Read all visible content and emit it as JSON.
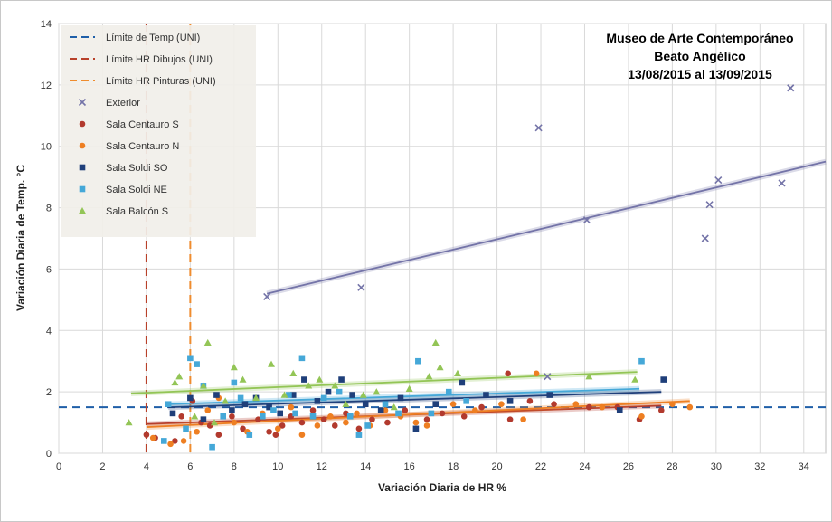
{
  "chart_data": {
    "type": "scatter",
    "title_lines": [
      "Museo de Arte Contemporáneo",
      "Beato Angélico",
      "13/08/2015 al 13/09/2015"
    ],
    "xlabel": "Variación Diaria de HR %",
    "ylabel": "Variación Diaria de Temp. °C",
    "xlim": [
      0,
      35
    ],
    "ylim": [
      0,
      14
    ],
    "xticks": [
      0,
      2,
      4,
      6,
      8,
      10,
      12,
      14,
      16,
      18,
      20,
      22,
      24,
      26,
      28,
      30,
      32,
      34
    ],
    "yticks": [
      0,
      2,
      4,
      6,
      8,
      10,
      12,
      14
    ],
    "grid": true,
    "legend_position": "top-left",
    "reference_lines": [
      {
        "name": "Límite de Temp (UNI)",
        "orientation": "horizontal",
        "value": 1.5,
        "color": "#1f5fa8"
      },
      {
        "name": "Límite HR Dibujos (UNI)",
        "orientation": "vertical",
        "value": 4,
        "color": "#b8412a"
      },
      {
        "name": "Límite HR Pinturas (UNI)",
        "orientation": "vertical",
        "value": 6,
        "color": "#ef8c2e"
      }
    ],
    "series": [
      {
        "name": "Exterior",
        "marker": "x",
        "color": "#7474a8",
        "points": [
          [
            9.5,
            5.1
          ],
          [
            13.8,
            5.4
          ],
          [
            21.9,
            10.6
          ],
          [
            22.3,
            2.5
          ],
          [
            24.1,
            7.6
          ],
          [
            29.5,
            7.0
          ],
          [
            29.7,
            8.1
          ],
          [
            30.1,
            8.9
          ],
          [
            33.0,
            8.8
          ],
          [
            33.4,
            11.9
          ]
        ],
        "trend": [
          [
            9.5,
            5.2
          ],
          [
            35,
            9.5
          ]
        ]
      },
      {
        "name": "Sala Centauro S",
        "marker": "circle",
        "color": "#b23a2e",
        "points": [
          [
            4.0,
            0.6
          ],
          [
            4.4,
            0.5
          ],
          [
            5.3,
            0.4
          ],
          [
            5.6,
            1.2
          ],
          [
            6.1,
            1.7
          ],
          [
            6.5,
            1.0
          ],
          [
            6.9,
            0.9
          ],
          [
            7.3,
            0.6
          ],
          [
            7.9,
            1.2
          ],
          [
            8.4,
            0.8
          ],
          [
            9.1,
            1.1
          ],
          [
            9.6,
            0.7
          ],
          [
            9.9,
            0.6
          ],
          [
            10.2,
            0.9
          ],
          [
            10.6,
            1.2
          ],
          [
            11.1,
            1.0
          ],
          [
            11.6,
            1.4
          ],
          [
            12.1,
            1.1
          ],
          [
            12.6,
            0.9
          ],
          [
            13.1,
            1.3
          ],
          [
            13.7,
            0.8
          ],
          [
            14.3,
            1.1
          ],
          [
            15.0,
            1.0
          ],
          [
            15.8,
            1.4
          ],
          [
            16.8,
            1.1
          ],
          [
            17.5,
            1.3
          ],
          [
            18.5,
            1.2
          ],
          [
            19.3,
            1.5
          ],
          [
            20.5,
            2.6
          ],
          [
            20.6,
            1.1
          ],
          [
            21.5,
            1.7
          ],
          [
            22.6,
            1.6
          ],
          [
            24.2,
            1.5
          ],
          [
            25.5,
            1.5
          ],
          [
            26.5,
            1.1
          ],
          [
            27.5,
            1.4
          ]
        ],
        "trend": [
          [
            4,
            0.95
          ],
          [
            27.5,
            1.55
          ]
        ]
      },
      {
        "name": "Sala Centauro N",
        "marker": "circle",
        "color": "#ee7f22",
        "points": [
          [
            4.3,
            0.5
          ],
          [
            5.1,
            0.3
          ],
          [
            5.7,
            0.4
          ],
          [
            6.3,
            0.7
          ],
          [
            6.8,
            1.4
          ],
          [
            7.3,
            1.8
          ],
          [
            8.0,
            1.0
          ],
          [
            8.6,
            0.7
          ],
          [
            9.3,
            1.3
          ],
          [
            10.0,
            0.8
          ],
          [
            10.6,
            1.5
          ],
          [
            11.1,
            0.6
          ],
          [
            11.8,
            0.9
          ],
          [
            12.4,
            1.2
          ],
          [
            13.1,
            1.0
          ],
          [
            13.6,
            1.3
          ],
          [
            14.2,
            0.9
          ],
          [
            14.9,
            1.4
          ],
          [
            15.6,
            1.2
          ],
          [
            16.3,
            1.0
          ],
          [
            16.8,
            0.9
          ],
          [
            18.0,
            1.6
          ],
          [
            19.0,
            1.4
          ],
          [
            20.2,
            1.6
          ],
          [
            21.2,
            1.1
          ],
          [
            21.8,
            2.6
          ],
          [
            23.6,
            1.6
          ],
          [
            24.8,
            1.5
          ],
          [
            26.6,
            1.2
          ],
          [
            28.0,
            1.6
          ],
          [
            28.8,
            1.5
          ]
        ],
        "trend": [
          [
            4,
            0.85
          ],
          [
            28.8,
            1.7
          ]
        ]
      },
      {
        "name": "Sala Soldi SO",
        "marker": "square",
        "color": "#1f3f7a",
        "points": [
          [
            5.2,
            1.3
          ],
          [
            6.0,
            1.8
          ],
          [
            6.6,
            1.1
          ],
          [
            7.2,
            1.9
          ],
          [
            7.9,
            1.4
          ],
          [
            8.5,
            1.6
          ],
          [
            9.0,
            1.8
          ],
          [
            9.6,
            1.5
          ],
          [
            10.1,
            1.3
          ],
          [
            10.7,
            1.9
          ],
          [
            11.2,
            2.4
          ],
          [
            11.8,
            1.7
          ],
          [
            12.3,
            2.0
          ],
          [
            12.9,
            2.4
          ],
          [
            13.4,
            1.9
          ],
          [
            14.0,
            1.6
          ],
          [
            14.7,
            1.4
          ],
          [
            15.6,
            1.8
          ],
          [
            16.3,
            0.8
          ],
          [
            17.2,
            1.6
          ],
          [
            18.4,
            2.3
          ],
          [
            19.5,
            1.9
          ],
          [
            20.6,
            1.7
          ],
          [
            22.4,
            1.9
          ],
          [
            25.6,
            1.4
          ],
          [
            27.6,
            2.4
          ]
        ],
        "trend": [
          [
            5,
            1.5
          ],
          [
            27.5,
            2.0
          ]
        ]
      },
      {
        "name": "Sala Soldi NE",
        "marker": "square",
        "color": "#45a8d8",
        "points": [
          [
            4.8,
            0.4
          ],
          [
            5.0,
            1.6
          ],
          [
            5.8,
            0.8
          ],
          [
            6.0,
            3.1
          ],
          [
            6.3,
            2.9
          ],
          [
            6.6,
            2.2
          ],
          [
            7.0,
            0.2
          ],
          [
            7.5,
            1.2
          ],
          [
            8.0,
            2.3
          ],
          [
            8.3,
            1.8
          ],
          [
            8.7,
            0.6
          ],
          [
            9.3,
            1.2
          ],
          [
            9.8,
            1.4
          ],
          [
            10.5,
            1.9
          ],
          [
            10.8,
            1.3
          ],
          [
            11.1,
            3.1
          ],
          [
            11.6,
            1.2
          ],
          [
            12.1,
            1.8
          ],
          [
            12.8,
            2.0
          ],
          [
            13.3,
            1.2
          ],
          [
            13.7,
            0.6
          ],
          [
            14.1,
            0.9
          ],
          [
            14.9,
            1.6
          ],
          [
            15.5,
            1.3
          ],
          [
            16.4,
            3.0
          ],
          [
            17.0,
            1.3
          ],
          [
            17.8,
            2.0
          ],
          [
            18.6,
            1.7
          ],
          [
            26.6,
            3.0
          ]
        ],
        "trend": [
          [
            5,
            1.6
          ],
          [
            26.5,
            2.1
          ]
        ]
      },
      {
        "name": "Sala Balcón S",
        "marker": "triangle",
        "color": "#93c556",
        "points": [
          [
            3.2,
            1.0
          ],
          [
            5.3,
            2.3
          ],
          [
            5.5,
            2.5
          ],
          [
            6.2,
            1.2
          ],
          [
            6.6,
            2.2
          ],
          [
            6.8,
            3.6
          ],
          [
            7.1,
            1.0
          ],
          [
            7.6,
            1.7
          ],
          [
            8.0,
            2.8
          ],
          [
            8.4,
            2.4
          ],
          [
            9.0,
            1.8
          ],
          [
            9.7,
            2.9
          ],
          [
            10.3,
            1.9
          ],
          [
            10.7,
            2.6
          ],
          [
            11.4,
            2.2
          ],
          [
            11.9,
            2.4
          ],
          [
            12.6,
            2.2
          ],
          [
            13.1,
            1.6
          ],
          [
            13.9,
            1.9
          ],
          [
            14.5,
            2.0
          ],
          [
            15.3,
            1.5
          ],
          [
            16.0,
            2.1
          ],
          [
            16.9,
            2.5
          ],
          [
            17.2,
            3.6
          ],
          [
            17.4,
            2.8
          ],
          [
            18.2,
            2.6
          ],
          [
            24.2,
            2.5
          ],
          [
            26.3,
            2.4
          ]
        ],
        "trend": [
          [
            3.3,
            1.95
          ],
          [
            26.4,
            2.65
          ]
        ]
      }
    ]
  }
}
